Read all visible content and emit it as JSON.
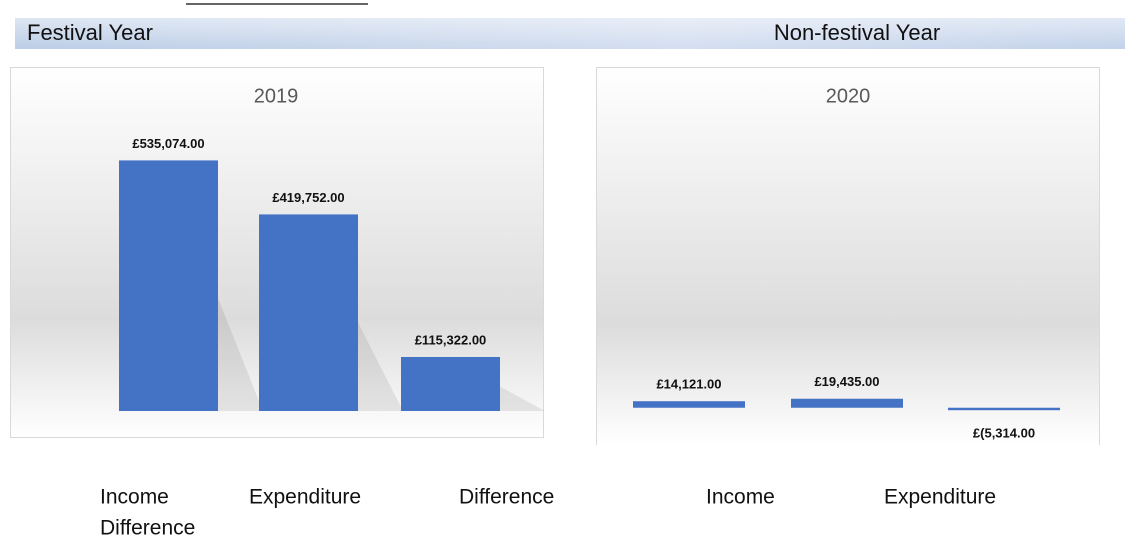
{
  "header": {
    "left": "Festival Year",
    "right": "Non-festival Year"
  },
  "chart_data": [
    {
      "type": "bar",
      "title": "2019",
      "categories": [
        null,
        null,
        null
      ],
      "values": [
        535074,
        419752,
        115322
      ],
      "value_labels": [
        "£535,074.00",
        "£419,752.00",
        "£115,322.00"
      ],
      "color": "#4472c4",
      "ylim": [
        0,
        600000
      ]
    },
    {
      "type": "bar",
      "title": "2020",
      "categories": [
        null,
        null,
        null
      ],
      "values": [
        14121,
        19435,
        -5314
      ],
      "value_labels": [
        "£14,121.00",
        "£19,435.00",
        "£(5,314.00"
      ],
      "color": "#4472c4",
      "ylim": [
        -20000,
        600000
      ]
    }
  ],
  "footer_labels": [
    "Income",
    "Expenditure",
    "Difference",
    "Income",
    "Expenditure",
    "Difference"
  ]
}
